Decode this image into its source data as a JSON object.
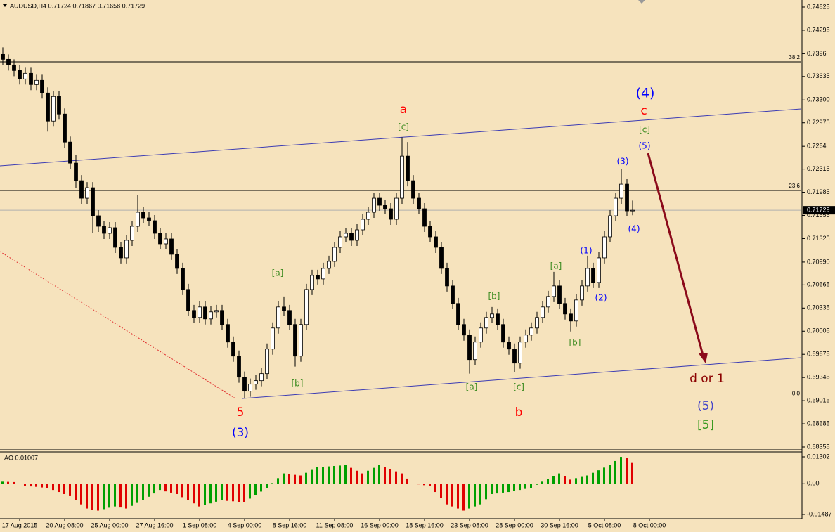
{
  "chart_data": {
    "type": "candlestick",
    "title": "AUDUSD,H4  0.71724 0.71867 0.71658 0.71729",
    "open": [
      0.7395,
      0.7388,
      0.738,
      0.7372,
      0.736,
      0.7368,
      0.7352,
      0.7358,
      0.734,
      0.73,
      0.7335,
      0.731,
      0.727,
      0.724,
      0.7215,
      0.719,
      0.7205,
      0.7165,
      0.715,
      0.714,
      0.7148,
      0.712,
      0.7105,
      0.713,
      0.715,
      0.717,
      0.7162,
      0.7158,
      0.714,
      0.7125,
      0.7132,
      0.711,
      0.709,
      0.706,
      0.703,
      0.702,
      0.7035,
      0.7018,
      0.7028,
      0.703,
      0.701,
      0.6985,
      0.6965,
      0.6935,
      0.6915,
      0.6925,
      0.693,
      0.694,
      0.6975,
      0.7005,
      0.7035,
      0.703,
      0.701,
      0.6965,
      0.701,
      0.706,
      0.708,
      0.7075,
      0.709,
      0.71,
      0.712,
      0.7135,
      0.714,
      0.713,
      0.7145,
      0.716,
      0.717,
      0.719,
      0.718,
      0.7175,
      0.716,
      0.719,
      0.725,
      0.7215,
      0.719,
      0.7175,
      0.715,
      0.7135,
      0.712,
      0.709,
      0.7065,
      0.704,
      0.701,
      0.6995,
      0.696,
      0.6985,
      0.7005,
      0.702,
      0.7025,
      0.701,
      0.6985,
      0.6975,
      0.6955,
      0.6985,
      0.6995,
      0.7005,
      0.702,
      0.7035,
      0.705,
      0.7065,
      0.704,
      0.7025,
      0.7015,
      0.7045,
      0.7065,
      0.709,
      0.707,
      0.7105,
      0.7135,
      0.7165,
      0.719,
      0.721,
      0.71724
    ],
    "high": [
      0.7405,
      0.7395,
      0.7388,
      0.738,
      0.7376,
      0.7376,
      0.7366,
      0.7366,
      0.7348,
      0.7343,
      0.7343,
      0.7318,
      0.7278,
      0.7252,
      0.7223,
      0.7213,
      0.7213,
      0.7173,
      0.7158,
      0.7156,
      0.7156,
      0.7128,
      0.7138,
      0.7158,
      0.7195,
      0.7178,
      0.717,
      0.7166,
      0.7148,
      0.714,
      0.714,
      0.7118,
      0.7098,
      0.7068,
      0.7038,
      0.7043,
      0.7043,
      0.7036,
      0.7038,
      0.7038,
      0.7018,
      0.6993,
      0.6973,
      0.6943,
      0.6933,
      0.6938,
      0.6948,
      0.6983,
      0.7013,
      0.7043,
      0.705,
      0.7038,
      0.7018,
      0.7018,
      0.7068,
      0.7088,
      0.7088,
      0.7098,
      0.7108,
      0.7128,
      0.7143,
      0.7148,
      0.7148,
      0.7153,
      0.7168,
      0.7178,
      0.7198,
      0.7198,
      0.7188,
      0.7183,
      0.7198,
      0.7277,
      0.727,
      0.7223,
      0.7198,
      0.7183,
      0.7158,
      0.7143,
      0.7128,
      0.7098,
      0.7073,
      0.7048,
      0.7018,
      0.7003,
      0.6993,
      0.7013,
      0.7028,
      0.7035,
      0.7033,
      0.7018,
      0.6993,
      0.6983,
      0.6993,
      0.7003,
      0.7013,
      0.7028,
      0.7043,
      0.7058,
      0.7085,
      0.7073,
      0.7048,
      0.7033,
      0.7053,
      0.7073,
      0.7108,
      0.7098,
      0.7113,
      0.7143,
      0.7173,
      0.7198,
      0.7232,
      0.7218,
      0.71867
    ],
    "low": [
      0.738,
      0.7372,
      0.7364,
      0.7352,
      0.7352,
      0.7344,
      0.7344,
      0.7332,
      0.7285,
      0.7292,
      0.7302,
      0.7262,
      0.7232,
      0.7205,
      0.7182,
      0.7182,
      0.714,
      0.7142,
      0.7132,
      0.7132,
      0.7112,
      0.7097,
      0.7097,
      0.7122,
      0.7142,
      0.7154,
      0.715,
      0.7132,
      0.7117,
      0.7117,
      0.7102,
      0.7082,
      0.7052,
      0.7022,
      0.7012,
      0.7012,
      0.701,
      0.701,
      0.702,
      0.7002,
      0.6977,
      0.6957,
      0.6927,
      0.6905,
      0.6907,
      0.6917,
      0.6922,
      0.6932,
      0.6967,
      0.6997,
      0.7022,
      0.7002,
      0.695,
      0.6957,
      0.7002,
      0.7052,
      0.7067,
      0.7067,
      0.7082,
      0.7092,
      0.7112,
      0.7127,
      0.7122,
      0.7122,
      0.7137,
      0.7152,
      0.7162,
      0.7172,
      0.7167,
      0.7152,
      0.7152,
      0.7182,
      0.7207,
      0.7182,
      0.7167,
      0.7142,
      0.7127,
      0.7112,
      0.7082,
      0.7057,
      0.7032,
      0.7002,
      0.6987,
      0.694,
      0.6952,
      0.6977,
      0.6997,
      0.7012,
      0.7002,
      0.6977,
      0.6967,
      0.6942,
      0.6947,
      0.6977,
      0.6987,
      0.6997,
      0.7012,
      0.7027,
      0.7042,
      0.7032,
      0.7017,
      0.7,
      0.7007,
      0.7037,
      0.7057,
      0.7062,
      0.7062,
      0.7097,
      0.7127,
      0.7157,
      0.7182,
      0.7164,
      0.71658
    ],
    "close": [
      0.7388,
      0.738,
      0.7372,
      0.736,
      0.7368,
      0.7352,
      0.7358,
      0.734,
      0.73,
      0.7335,
      0.731,
      0.727,
      0.724,
      0.7215,
      0.719,
      0.7205,
      0.7165,
      0.715,
      0.714,
      0.7148,
      0.712,
      0.7105,
      0.713,
      0.715,
      0.717,
      0.7162,
      0.7158,
      0.714,
      0.7125,
      0.7132,
      0.711,
      0.709,
      0.706,
      0.703,
      0.702,
      0.7035,
      0.7018,
      0.7028,
      0.703,
      0.701,
      0.6985,
      0.6965,
      0.6935,
      0.6915,
      0.6925,
      0.693,
      0.694,
      0.6975,
      0.7005,
      0.7035,
      0.703,
      0.701,
      0.6965,
      0.701,
      0.706,
      0.708,
      0.7075,
      0.709,
      0.71,
      0.712,
      0.7135,
      0.714,
      0.713,
      0.7145,
      0.716,
      0.717,
      0.719,
      0.718,
      0.7175,
      0.716,
      0.719,
      0.725,
      0.7215,
      0.719,
      0.7175,
      0.715,
      0.7135,
      0.712,
      0.709,
      0.7065,
      0.704,
      0.701,
      0.6995,
      0.696,
      0.6985,
      0.7005,
      0.702,
      0.7025,
      0.701,
      0.6985,
      0.6975,
      0.6955,
      0.6985,
      0.6995,
      0.7005,
      0.702,
      0.7035,
      0.705,
      0.7065,
      0.704,
      0.7025,
      0.7015,
      0.7045,
      0.7065,
      0.709,
      0.707,
      0.7105,
      0.7135,
      0.7165,
      0.719,
      0.721,
      0.7172,
      0.71729
    ],
    "colors": {
      "up": "#ffffff",
      "down": "#000000",
      "outline": "#000000"
    },
    "xlim": [
      -0.5,
      142
    ],
    "xticks": [
      {
        "value": 3,
        "label": "17 Aug 2015"
      },
      {
        "value": 11,
        "label": "20 Aug 08:00"
      },
      {
        "value": 19,
        "label": "25 Aug 00:00"
      },
      {
        "value": 27,
        "label": "27 Aug 16:00"
      },
      {
        "value": 35,
        "label": "1 Sep 08:00"
      },
      {
        "value": 43,
        "label": "4 Sep 00:00"
      },
      {
        "value": 51,
        "label": "8 Sep 16:00"
      },
      {
        "value": 59,
        "label": "11 Sep 08:00"
      },
      {
        "value": 67,
        "label": "16 Sep 00:00"
      },
      {
        "value": 75,
        "label": "18 Sep 16:00"
      },
      {
        "value": 83,
        "label": "23 Sep 08:00"
      },
      {
        "value": 91,
        "label": "28 Sep 00:00"
      },
      {
        "value": 99,
        "label": "30 Sep 16:00"
      },
      {
        "value": 107,
        "label": "5 Oct 08:00"
      },
      {
        "value": 115,
        "label": "8 Oct 00:00"
      }
    ],
    "ylim": [
      0.68315,
      0.74725
    ],
    "yticks": [
      0.74625,
      0.74295,
      0.7396,
      0.73635,
      {
        "value": 0.733,
        "label": "0.73300"
      },
      0.72975,
      0.7264,
      0.72315,
      0.71985,
      0.71655,
      0.71325,
      {
        "value": 0.7099,
        "label": "0.70990"
      },
      0.70665,
      0.70335,
      0.70005,
      0.69675,
      0.69345,
      0.69015,
      0.68685,
      0.68355
    ],
    "current_price": 0.71729,
    "fib_levels": [
      {
        "price": 0.73844,
        "label": "38.2"
      },
      {
        "price": 0.72011,
        "label": "23.6"
      },
      {
        "price": 0.69051,
        "label": "0.0"
      }
    ],
    "annotations": [
      {
        "text": "5",
        "color": "#ff0000"
      },
      {
        "text": "(3)",
        "color": "#0000ff"
      },
      {
        "text": "a",
        "color": "#ff0000"
      },
      {
        "text": "[c]",
        "color": "#3a8a1e"
      },
      {
        "text": "b",
        "color": "#ff0000"
      },
      {
        "text": "(4)",
        "color": "#0000ff"
      },
      {
        "text": "c",
        "color": "#ff0000"
      },
      {
        "text": "[c]",
        "color": "#3a8a1e"
      },
      {
        "text": "(5)",
        "color": "#0000ff"
      },
      {
        "text": "(3)",
        "color": "#0000ff"
      },
      {
        "text": "(4)",
        "color": "#0000ff"
      },
      {
        "text": "(1)",
        "color": "#0000ff"
      },
      {
        "text": "(2)",
        "color": "#0000ff"
      },
      {
        "text": "[a]",
        "color": "#3a8a1e"
      },
      {
        "text": "[b]",
        "color": "#3a8a1e"
      },
      {
        "text": "[a]",
        "color": "#3a8a1e"
      },
      {
        "text": "[b]",
        "color": "#3a8a1e"
      },
      {
        "text": "[c]",
        "color": "#3a8a1e"
      },
      {
        "text": "[a]",
        "color": "#3a8a1e"
      },
      {
        "text": "[b]",
        "color": "#3a8a1e"
      },
      {
        "text": "d or 1",
        "color": "#8b0000"
      },
      {
        "text": "(5)",
        "color": "#4646c8"
      },
      {
        "text": "[5]",
        "color": "#3a9a20"
      }
    ],
    "indicator": {
      "type": "histogram",
      "label": "AO 0.01007",
      "up_color": "#00a000",
      "down_color": "#e00000",
      "ylim": [
        -0.01691,
        0.0154
      ],
      "yticks": [
        0.01302,
        {
          "value": 0,
          "label": "0.00"
        },
        -0.01487
      ],
      "values": [
        0.001,
        0.0009,
        0.0008,
        -0.0001,
        -0.001,
        -0.0013,
        -0.0015,
        -0.0018,
        -0.002,
        -0.003,
        -0.004,
        -0.005,
        -0.006,
        -0.008,
        -0.01,
        -0.012,
        -0.0127,
        -0.013,
        -0.0123,
        -0.0116,
        -0.011,
        -0.0115,
        -0.012,
        -0.0107,
        -0.0093,
        -0.008,
        -0.0063,
        -0.0047,
        -0.003,
        -0.0037,
        -0.0043,
        -0.005,
        -0.0065,
        -0.008,
        -0.0095,
        -0.011,
        -0.0102,
        -0.0095,
        -0.0087,
        -0.008,
        -0.0083,
        -0.0085,
        -0.0088,
        -0.009,
        -0.0072,
        -0.0055,
        -0.0038,
        -0.002,
        0.0003,
        0.0027,
        0.005,
        0.0047,
        0.0043,
        0.004,
        0.0053,
        0.0067,
        0.008,
        0.0082,
        0.0084,
        0.0086,
        0.0088,
        0.009,
        0.0077,
        0.0063,
        0.005,
        0.0063,
        0.0077,
        0.009,
        0.008,
        0.007,
        0.006,
        0.005,
        0.0025,
        0.0,
        -0.0003,
        -0.0007,
        -0.001,
        -0.004,
        -0.007,
        -0.01,
        -0.011,
        -0.012,
        -0.013,
        -0.012,
        -0.011,
        -0.01,
        -0.0075,
        -0.005,
        -0.0047,
        -0.0043,
        -0.004,
        -0.0035,
        -0.003,
        -0.0025,
        -0.002,
        -0.0005,
        0.001,
        0.0023,
        0.0037,
        0.005,
        0.0035,
        0.002,
        0.0027,
        0.0033,
        0.004,
        0.0053,
        0.0065,
        0.0078,
        0.009,
        0.011,
        0.013,
        0.0125,
        0.01007
      ]
    }
  }
}
